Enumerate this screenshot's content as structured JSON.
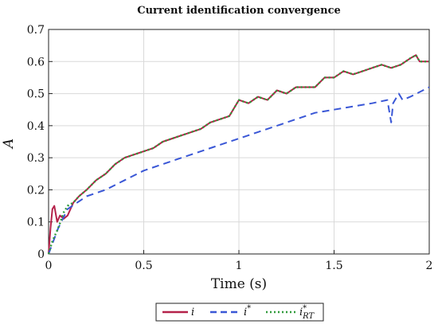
{
  "chart_data": {
    "type": "line",
    "title": "Current identification convergence",
    "xlabel": "Time (s)",
    "ylabel": "A",
    "xlim": [
      0,
      2
    ],
    "ylim": [
      0,
      0.7
    ],
    "x_ticks": [
      "0",
      "0.5",
      "1",
      "1.5",
      "2"
    ],
    "y_ticks": [
      "0",
      "0.1",
      "0.2",
      "0.3",
      "0.4",
      "0.5",
      "0.6",
      "0.7"
    ],
    "grid": true,
    "legend": {
      "placement": "bottom-outside",
      "entries": [
        {
          "name": "i",
          "sup": "",
          "sub": ""
        },
        {
          "name": "i",
          "sup": "*",
          "sub": ""
        },
        {
          "name": "i",
          "sup": "*",
          "sub": "RT"
        }
      ]
    },
    "colors": {
      "i": "#b5224a",
      "i_star": "#3a57d6",
      "i_rt": "#2f9a3a"
    },
    "series": [
      {
        "name": "i",
        "style": "solid",
        "x": [
          0,
          0.01,
          0.02,
          0.03,
          0.045,
          0.06,
          0.08,
          0.1,
          0.13,
          0.16,
          0.2,
          0.25,
          0.3,
          0.35,
          0.4,
          0.45,
          0.5,
          0.55,
          0.6,
          0.65,
          0.7,
          0.75,
          0.8,
          0.85,
          0.9,
          0.95,
          1.0,
          1.05,
          1.1,
          1.15,
          1.2,
          1.25,
          1.3,
          1.35,
          1.4,
          1.45,
          1.5,
          1.55,
          1.6,
          1.65,
          1.7,
          1.75,
          1.8,
          1.85,
          1.9,
          1.93,
          1.95,
          2.0
        ],
        "y": [
          0,
          0.08,
          0.14,
          0.15,
          0.1,
          0.12,
          0.11,
          0.12,
          0.16,
          0.18,
          0.2,
          0.23,
          0.25,
          0.28,
          0.3,
          0.31,
          0.32,
          0.33,
          0.35,
          0.36,
          0.37,
          0.38,
          0.39,
          0.41,
          0.42,
          0.43,
          0.48,
          0.47,
          0.49,
          0.48,
          0.51,
          0.5,
          0.52,
          0.52,
          0.52,
          0.55,
          0.55,
          0.57,
          0.56,
          0.57,
          0.58,
          0.59,
          0.58,
          0.59,
          0.61,
          0.62,
          0.6,
          0.6
        ]
      },
      {
        "name": "i*",
        "style": "dashed",
        "x": [
          0,
          0.05,
          0.1,
          0.2,
          0.3,
          0.4,
          0.5,
          0.6,
          0.7,
          0.8,
          0.9,
          1.0,
          1.1,
          1.2,
          1.3,
          1.4,
          1.5,
          1.6,
          1.7,
          1.78,
          1.8,
          1.81,
          1.82,
          1.83,
          1.84,
          1.86,
          1.9,
          2.0
        ],
        "y": [
          0,
          0.08,
          0.14,
          0.18,
          0.2,
          0.23,
          0.26,
          0.28,
          0.3,
          0.32,
          0.34,
          0.36,
          0.38,
          0.4,
          0.42,
          0.44,
          0.45,
          0.46,
          0.47,
          0.48,
          0.41,
          0.47,
          0.48,
          0.49,
          0.5,
          0.48,
          0.49,
          0.52
        ]
      },
      {
        "name": "i*_RT",
        "style": "dotted",
        "x": [
          0,
          0.02,
          0.05,
          0.08,
          0.1,
          0.13,
          0.16,
          0.2,
          0.25,
          0.3,
          0.35,
          0.4,
          0.45,
          0.5,
          0.55,
          0.6,
          0.65,
          0.7,
          0.75,
          0.8,
          0.85,
          0.9,
          0.95,
          1.0,
          1.05,
          1.1,
          1.15,
          1.2,
          1.25,
          1.3,
          1.35,
          1.4,
          1.45,
          1.5,
          1.55,
          1.6,
          1.65,
          1.7,
          1.75,
          1.8,
          1.85,
          1.9,
          1.93,
          1.95,
          2.0
        ],
        "y": [
          0,
          0.04,
          0.08,
          0.13,
          0.15,
          0.16,
          0.18,
          0.2,
          0.23,
          0.25,
          0.28,
          0.3,
          0.31,
          0.32,
          0.33,
          0.35,
          0.36,
          0.37,
          0.38,
          0.39,
          0.41,
          0.42,
          0.43,
          0.48,
          0.47,
          0.49,
          0.48,
          0.51,
          0.5,
          0.52,
          0.52,
          0.52,
          0.55,
          0.55,
          0.57,
          0.56,
          0.57,
          0.58,
          0.59,
          0.58,
          0.59,
          0.61,
          0.62,
          0.6,
          0.6
        ]
      }
    ]
  }
}
